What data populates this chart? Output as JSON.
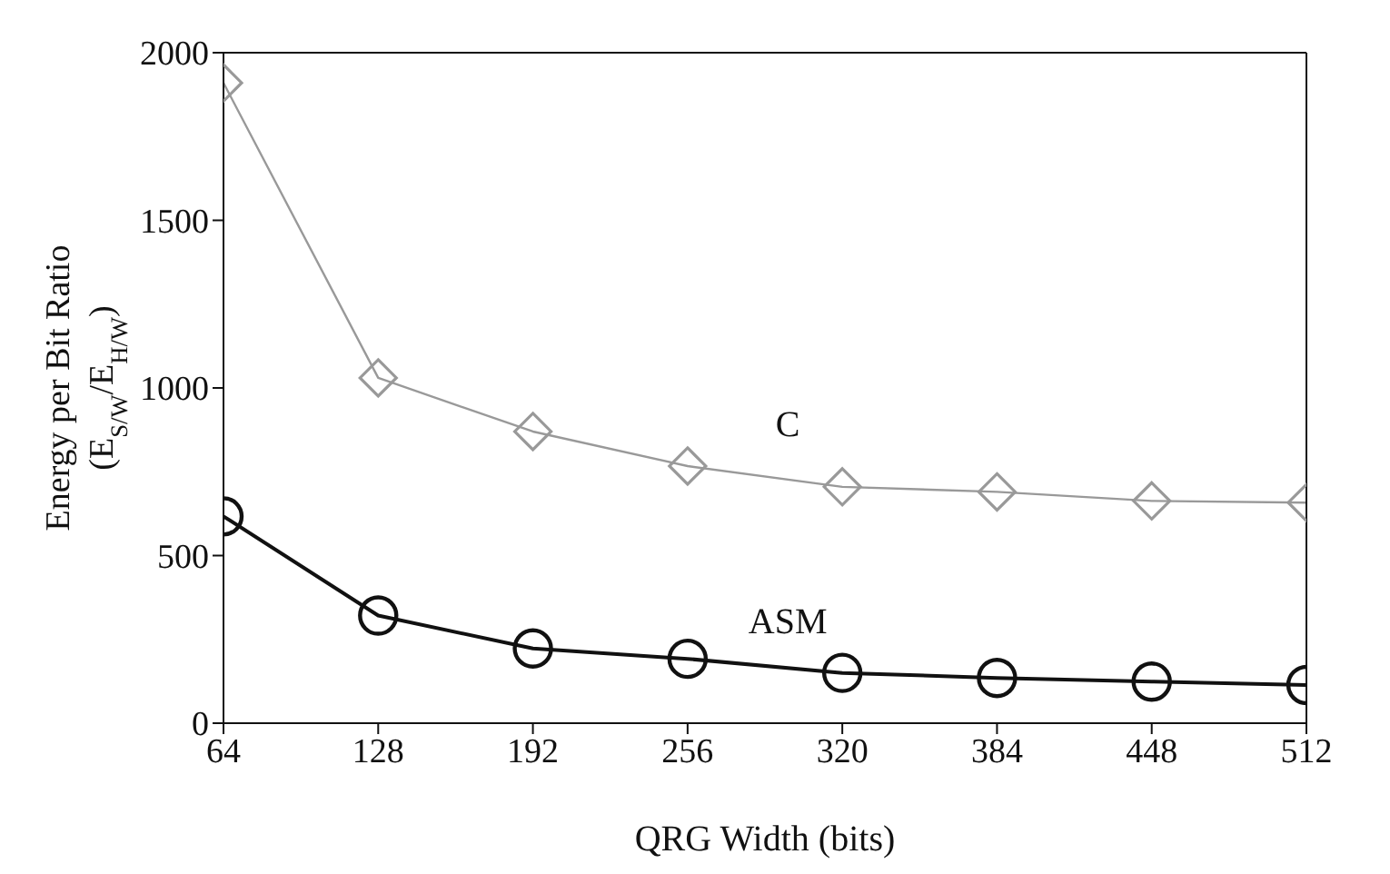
{
  "chart_data": {
    "type": "line",
    "xlabel": "QRG Width (bits)",
    "ylabel": "Energy per Bit Ratio\n(E$_{S/W}$/E$_{H/W}$)",
    "x": [
      64,
      128,
      192,
      256,
      320,
      384,
      448,
      512
    ],
    "series": [
      {
        "name": "C",
        "color": "#999999",
        "marker": "diamond",
        "values": [
          1910,
          1030,
          870,
          767,
          705,
          690,
          663,
          658
        ]
      },
      {
        "name": "ASM",
        "color": "#111111",
        "marker": "circle",
        "values": [
          617,
          321,
          223,
          192,
          150,
          135,
          124,
          114
        ]
      }
    ],
    "xlim": [
      64,
      512
    ],
    "xticks": [
      64,
      128,
      192,
      256,
      320,
      384,
      448,
      512
    ],
    "ylim": [
      0,
      2000
    ],
    "yticks": [
      0,
      500,
      1000,
      1500,
      2000
    ],
    "grid": false,
    "legend": false,
    "line_style": "solid"
  }
}
